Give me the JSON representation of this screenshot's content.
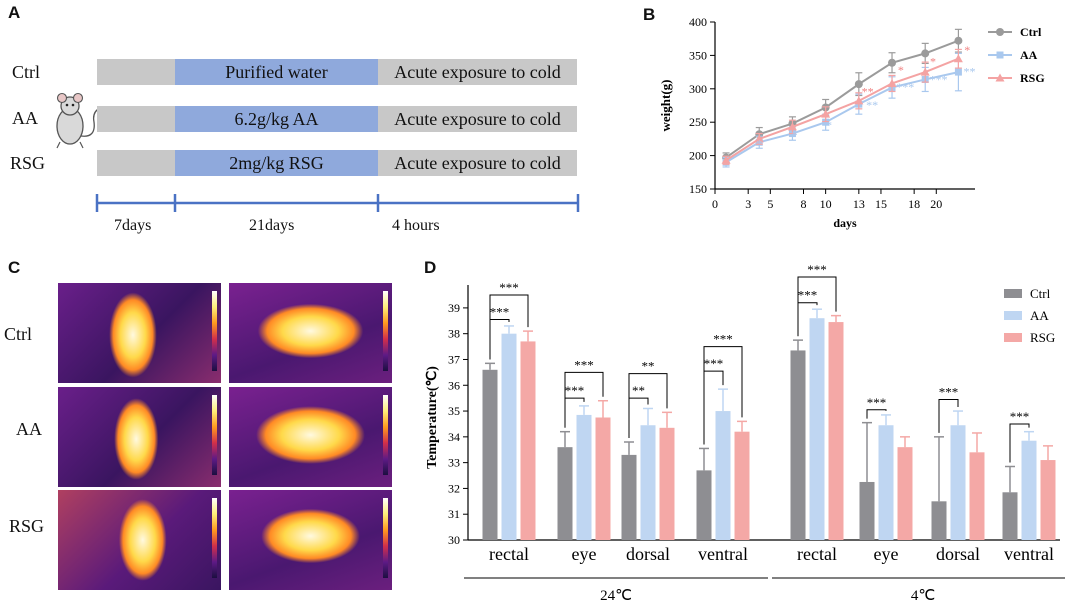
{
  "panels": {
    "a": "A",
    "b": "B",
    "c": "C",
    "d": "D"
  },
  "panel_a": {
    "rows": [
      {
        "label": "Ctrl",
        "treatment": "Purified water",
        "exposure": "Acute exposure to cold"
      },
      {
        "label": "AA",
        "treatment": "6.2g/kg AA",
        "exposure": "Acute exposure to cold"
      },
      {
        "label": "RSG",
        "treatment": "2mg/kg RSG",
        "exposure": "Acute exposure to cold"
      }
    ],
    "timeline": [
      "7days",
      "21days",
      "4 hours"
    ],
    "mouse_icon": "mouse-icon",
    "colors": {
      "gray": "#c8c8c8",
      "blue": "#8fa9dc",
      "timeline": "#4a72c4"
    }
  },
  "panel_c": {
    "rows": [
      "Ctrl",
      "AA",
      "RSG"
    ],
    "palette": [
      "#1c0f40",
      "#5e1a86",
      "#d22f4a",
      "#ff9a1f",
      "#ffef7a",
      "#ffffff"
    ]
  },
  "chart_data": [
    {
      "id": "B",
      "type": "line",
      "xlabel": "days",
      "ylabel": "weight(g)",
      "xticks": [
        0,
        3,
        5,
        8,
        10,
        13,
        15,
        18,
        20
      ],
      "yticks": [
        150,
        200,
        250,
        300,
        350,
        400
      ],
      "xlim": [
        0,
        23.5
      ],
      "ylim": [
        150,
        400
      ],
      "x": [
        1,
        4,
        7,
        10,
        13,
        16,
        19,
        22
      ],
      "series": [
        {
          "name": "Ctrl",
          "color": "#9b9b9b",
          "marker": "circle",
          "values": [
            197,
            232,
            248,
            272,
            307,
            339,
            353,
            372
          ],
          "errors": [
            7,
            10,
            10,
            12,
            17,
            15,
            15,
            17
          ]
        },
        {
          "name": "AA",
          "color": "#a9c8ee",
          "marker": "square",
          "values": [
            190,
            220,
            233,
            250,
            277,
            302,
            314,
            325
          ],
          "errors": [
            7,
            9,
            10,
            12,
            15,
            16,
            18,
            28
          ]
        },
        {
          "name": "RSG",
          "color": "#f4a3a3",
          "marker": "triangle",
          "values": [
            193,
            225,
            243,
            262,
            282,
            308,
            325,
            345
          ],
          "errors": [
            6,
            8,
            10,
            11,
            12,
            12,
            15,
            14
          ]
        }
      ],
      "annotations": [
        {
          "x": 4,
          "y": 212,
          "text": "*",
          "color": "#a9c8ee"
        },
        {
          "x": 7.2,
          "y": 225,
          "text": "*",
          "color": "#a9c8ee"
        },
        {
          "x": 10.3,
          "y": 240,
          "text": "*",
          "color": "#a9c8ee"
        },
        {
          "x": 14.2,
          "y": 270,
          "text": "**",
          "color": "#a9c8ee"
        },
        {
          "x": 17.2,
          "y": 297,
          "text": "***",
          "color": "#a9c8ee"
        },
        {
          "x": 20.2,
          "y": 308,
          "text": "***",
          "color": "#a9c8ee"
        },
        {
          "x": 23,
          "y": 320,
          "text": "**",
          "color": "#a9c8ee"
        },
        {
          "x": 13.8,
          "y": 290,
          "text": "**",
          "color": "#f08080"
        },
        {
          "x": 16.8,
          "y": 322,
          "text": "*",
          "color": "#f08080"
        },
        {
          "x": 19.7,
          "y": 335,
          "text": "*",
          "color": "#f08080"
        },
        {
          "x": 22.8,
          "y": 352,
          "text": "*",
          "color": "#f08080"
        }
      ],
      "legend": [
        "Ctrl",
        "AA",
        "RSG"
      ],
      "legend_position": "top-right"
    },
    {
      "id": "D",
      "type": "bar",
      "ylabel": "Temperature(℃)",
      "ylim": [
        30,
        39.5
      ],
      "yticks": [
        30,
        31,
        32,
        33,
        34,
        35,
        36,
        37,
        38,
        39
      ],
      "categories": [
        "rectal",
        "eye",
        "dorsal",
        "ventral",
        "rectal",
        "eye",
        "dorsal",
        "ventral"
      ],
      "groups": [
        {
          "label": "24℃",
          "categories": [
            0,
            1,
            2,
            3
          ]
        },
        {
          "label": "4℃",
          "categories": [
            4,
            5,
            6,
            7
          ]
        }
      ],
      "series": [
        {
          "name": "Ctrl",
          "color": "#8e8e92",
          "values": [
            36.6,
            33.6,
            33.3,
            32.7,
            37.35,
            32.25,
            31.5,
            31.85
          ],
          "errors": [
            0.25,
            0.6,
            0.5,
            0.85,
            0.4,
            2.3,
            2.5,
            1.0
          ]
        },
        {
          "name": "AA",
          "color": "#bfd6f2",
          "values": [
            38.0,
            34.85,
            34.45,
            35.0,
            38.6,
            34.45,
            34.45,
            33.85
          ],
          "errors": [
            0.3,
            0.35,
            0.65,
            0.85,
            0.35,
            0.4,
            0.55,
            0.35
          ]
        },
        {
          "name": "RSG",
          "color": "#f4a8a6",
          "values": [
            37.7,
            34.75,
            34.35,
            34.2,
            38.45,
            33.6,
            33.4,
            33.1
          ],
          "errors": [
            0.4,
            0.65,
            0.6,
            0.4,
            0.25,
            0.4,
            0.75,
            0.55
          ]
        }
      ],
      "significance": [
        {
          "category": 0,
          "from": 0,
          "to": 1,
          "text": "***",
          "level": 38.55
        },
        {
          "category": 0,
          "from": 0,
          "to": 2,
          "text": "***",
          "level": 39.5
        },
        {
          "category": 1,
          "from": 0,
          "to": 1,
          "text": "***",
          "level": 35.5
        },
        {
          "category": 1,
          "from": 0,
          "to": 2,
          "text": "***",
          "level": 36.5
        },
        {
          "category": 2,
          "from": 0,
          "to": 1,
          "text": "**",
          "level": 35.5
        },
        {
          "category": 2,
          "from": 0,
          "to": 2,
          "text": "**",
          "level": 36.45
        },
        {
          "category": 3,
          "from": 0,
          "to": 1,
          "text": "***",
          "level": 36.55
        },
        {
          "category": 3,
          "from": 0,
          "to": 2,
          "text": "***",
          "level": 37.5
        },
        {
          "category": 4,
          "from": 0,
          "to": 1,
          "text": "***",
          "level": 39.2
        },
        {
          "category": 4,
          "from": 0,
          "to": 2,
          "text": "***",
          "level": 40.2
        },
        {
          "category": 5,
          "from": 0,
          "to": 1,
          "text": "***",
          "level": 35.05
        },
        {
          "category": 6,
          "from": 0,
          "to": 1,
          "text": "***",
          "level": 35.45
        },
        {
          "category": 7,
          "from": 0,
          "to": 1,
          "text": "***",
          "level": 34.5
        }
      ],
      "legend": [
        "Ctrl",
        "AA",
        "RSG"
      ],
      "legend_position": "top-right"
    }
  ]
}
